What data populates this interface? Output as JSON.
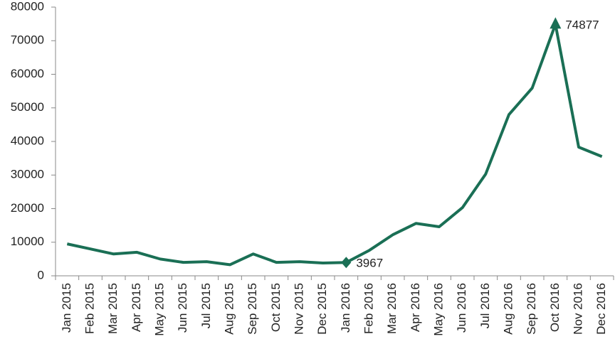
{
  "chart_data": {
    "type": "line",
    "categories": [
      "Jan 2015",
      "Feb 2015",
      "Mar 2015",
      "Apr 2015",
      "May 2015",
      "Jun 2015",
      "Jul 2015",
      "Aug 2015",
      "Sep 2015",
      "Oct 2015",
      "Nov 2015",
      "Dec 2015",
      "Jan 2016",
      "Feb 2016",
      "Mar 2016",
      "Apr 2016",
      "May 2016",
      "Jun 2016",
      "Jul 2016",
      "Aug 2016",
      "Sep 2016",
      "Oct 2016",
      "Nov 2016",
      "Dec 2016"
    ],
    "values": [
      9500,
      8000,
      6500,
      7000,
      5000,
      4000,
      4200,
      3300,
      6500,
      4000,
      4200,
      3800,
      3967,
      7600,
      12200,
      15600,
      14600,
      20300,
      30300,
      48000,
      55900,
      74877,
      38300,
      35500
    ],
    "color": "#1a6f55",
    "ylim": [
      0,
      80000
    ],
    "yticks": [
      0,
      10000,
      20000,
      30000,
      40000,
      50000,
      60000,
      70000,
      80000
    ],
    "grid": false,
    "markers": [
      {
        "index": 12,
        "shape": "diamond"
      },
      {
        "index": 21,
        "shape": "triangle"
      }
    ]
  }
}
